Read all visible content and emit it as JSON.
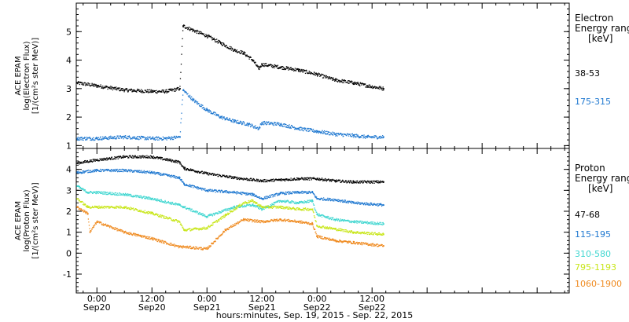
{
  "x_axis_title": "hours:minutes, Sep. 19, 2015 - Sep. 22, 2015",
  "chart_data": [
    {
      "type": "scatter",
      "panel": "top",
      "ylabel_lines": [
        "ACE EPAM",
        "log(Electron Flux)",
        "[1/(cm²s ster MeV)]"
      ],
      "ylim": [
        0.9,
        6.0
      ],
      "yticks": [
        1,
        2,
        3,
        4,
        5
      ],
      "legend_title_lines": [
        "Electron",
        "Energy range",
        "[keV]"
      ],
      "xlim_hours": [
        -4.5,
        103
      ],
      "xticks": [
        {
          "hour": 0,
          "label1": "0:00",
          "label2": "Sep20"
        },
        {
          "hour": 12,
          "label1": "12:00",
          "label2": "Sep20"
        },
        {
          "hour": 24,
          "label1": "0:00",
          "label2": "Sep21"
        },
        {
          "hour": 36,
          "label1": "12:00",
          "label2": "Sep21"
        },
        {
          "hour": 48,
          "label1": "0:00",
          "label2": "Sep22"
        },
        {
          "hour": 60,
          "label1": "12:00",
          "label2": "Sep22"
        }
      ],
      "series": [
        {
          "name": "38-53",
          "color": "#000000",
          "x": [
            -4.3,
            0,
            6,
            12,
            15,
            18.1,
            18.8,
            21,
            24,
            27,
            30,
            32,
            34,
            35.3,
            36,
            40,
            44,
            48,
            52,
            56,
            59,
            62.5
          ],
          "y": [
            3.2,
            3.1,
            2.95,
            2.9,
            2.9,
            3.0,
            5.2,
            5.05,
            4.85,
            4.6,
            4.35,
            4.25,
            4.0,
            3.7,
            3.85,
            3.75,
            3.65,
            3.5,
            3.3,
            3.2,
            3.1,
            3.0
          ]
        },
        {
          "name": "175-315",
          "color": "#1f78d0",
          "x": [
            -4.3,
            0,
            6,
            12,
            15,
            18.1,
            18.8,
            21,
            24,
            27,
            30,
            33,
            35.3,
            36,
            40,
            44,
            48,
            52,
            56,
            59,
            62.5
          ],
          "y": [
            1.25,
            1.25,
            1.3,
            1.25,
            1.25,
            1.3,
            2.95,
            2.6,
            2.25,
            2.0,
            1.85,
            1.75,
            1.6,
            1.8,
            1.75,
            1.6,
            1.5,
            1.4,
            1.35,
            1.3,
            1.3
          ]
        }
      ]
    },
    {
      "type": "scatter",
      "panel": "bottom",
      "ylabel_lines": [
        "ACE EPAM",
        "log(Proton Flux)",
        "[1/(cm²s ster MeV)]"
      ],
      "ylim": [
        -1.9,
        5.0
      ],
      "yticks": [
        -1,
        0,
        1,
        2,
        3,
        4
      ],
      "legend_title_lines": [
        "Proton",
        "Energy range",
        "[keV]"
      ],
      "xlim_hours": [
        -4.5,
        103
      ],
      "series": [
        {
          "name": "47-68",
          "color": "#000000",
          "x": [
            -4.3,
            0,
            6,
            12,
            18,
            19,
            24,
            30,
            36,
            40,
            44,
            48,
            52,
            56,
            62.5
          ],
          "y": [
            4.3,
            4.45,
            4.6,
            4.6,
            4.35,
            4.05,
            3.8,
            3.6,
            3.45,
            3.5,
            3.55,
            3.55,
            3.45,
            3.4,
            3.4
          ]
        },
        {
          "name": "115-195",
          "color": "#1f78d0",
          "x": [
            -4.3,
            0,
            6,
            12,
            18,
            19,
            24,
            30,
            34,
            36,
            40,
            44,
            47,
            48,
            52,
            56,
            62.5
          ],
          "y": [
            3.85,
            3.95,
            3.95,
            3.85,
            3.6,
            3.3,
            3.0,
            2.9,
            2.8,
            2.6,
            2.85,
            2.9,
            2.9,
            2.6,
            2.55,
            2.4,
            2.3
          ]
        },
        {
          "name": "310-580",
          "color": "#3fd6d0",
          "x": [
            -4.3,
            -2,
            0,
            6,
            12,
            18,
            19,
            24,
            30,
            34,
            36,
            40,
            44,
            47,
            48,
            52,
            56,
            62.5
          ],
          "y": [
            3.2,
            2.9,
            2.9,
            2.8,
            2.6,
            2.3,
            2.2,
            1.75,
            2.2,
            2.3,
            2.1,
            2.5,
            2.4,
            2.5,
            1.85,
            1.6,
            1.5,
            1.4
          ]
        },
        {
          "name": "795-1193",
          "color": "#c8e61a",
          "x": [
            -4.3,
            -2,
            0,
            6,
            12,
            18,
            19,
            24,
            28,
            32,
            34,
            36,
            40,
            44,
            47,
            48,
            52,
            56,
            62.5
          ],
          "y": [
            2.6,
            2.2,
            2.2,
            2.2,
            1.9,
            1.5,
            1.1,
            1.2,
            1.8,
            2.4,
            2.5,
            2.2,
            2.2,
            2.1,
            2.1,
            1.3,
            1.15,
            1.0,
            0.9
          ]
        },
        {
          "name": "1060-1900",
          "color": "#ef8a1f",
          "x": [
            -4.3,
            -2,
            -1.5,
            0,
            6,
            12,
            18,
            19,
            24,
            28,
            32,
            36,
            40,
            44,
            47,
            48,
            52,
            56,
            62.5
          ],
          "y": [
            2.2,
            1.9,
            1.0,
            1.5,
            1.0,
            0.7,
            0.3,
            0.3,
            0.2,
            1.1,
            1.6,
            1.5,
            1.6,
            1.5,
            1.4,
            0.8,
            0.6,
            0.5,
            0.35
          ]
        }
      ]
    }
  ]
}
